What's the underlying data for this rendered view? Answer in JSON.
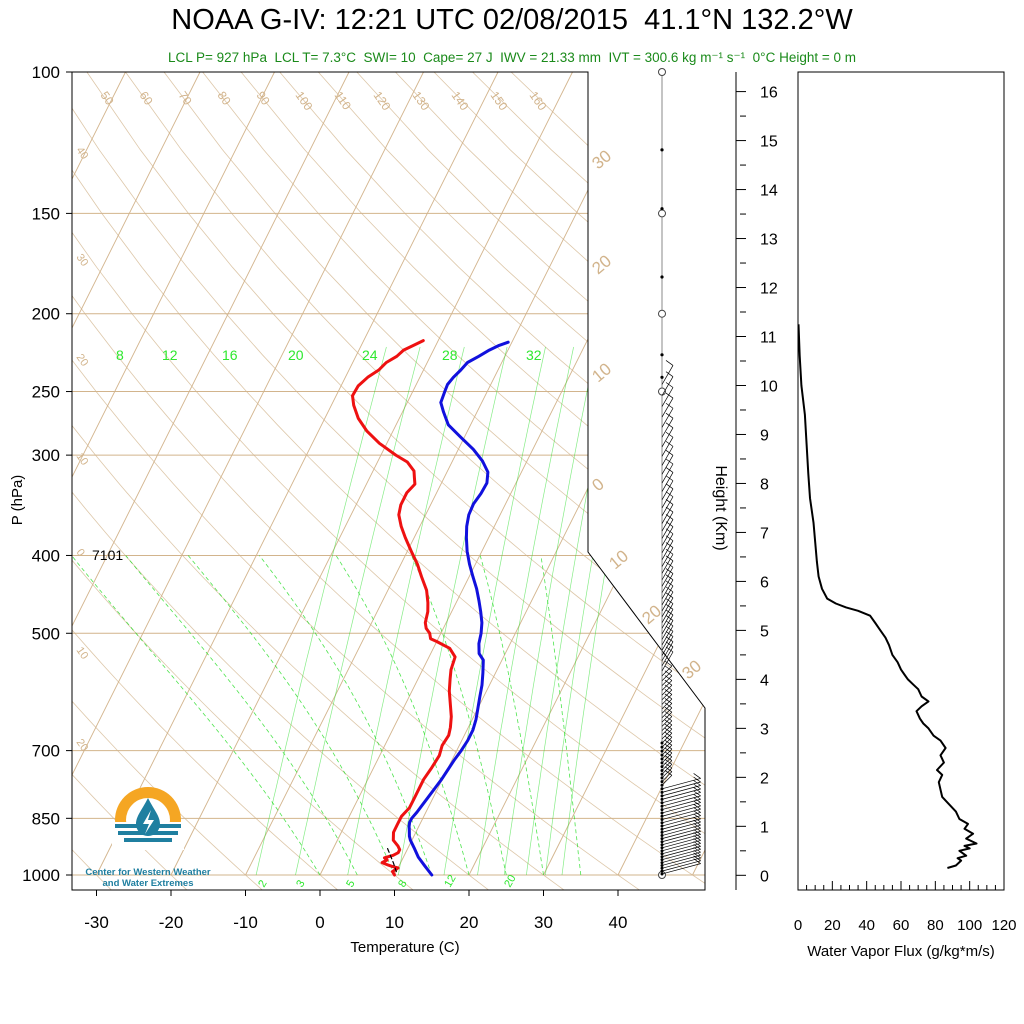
{
  "title": "NOAA G-IV: 12:21 UTC 02/08/2015  41.1°N 132.2°W",
  "subtitle": "LCL P= 927 hPa  LCL T= 7.3°C  SWI= 10  Cape= 27 J  IWV = 21.33 mm  IVT = 300.6 kg m⁻¹ s⁻¹  0°C Height = 0 m",
  "colors": {
    "temperature": "#ee1111",
    "dewpoint": "#1111dd",
    "isotherm_adiabat": "#d2b48c",
    "mixing_ratio": "#22dd22",
    "annotation_green": "#1a8a1a",
    "logo_orange": "#f5a623",
    "logo_blue": "#1f7fa0"
  },
  "station_label": "7101",
  "logo": {
    "icon": "water-drop-lightning-icon",
    "line1": "Center for Western Weather",
    "line2": "and Water Extremes"
  },
  "chart_data": [
    {
      "type": "line",
      "chart_kind": "skew-T log-P diagram",
      "xlabel": "Temperature (C)",
      "ylabel": "P (hPa)",
      "x_ticks": [
        -30,
        -20,
        -10,
        0,
        10,
        20,
        30,
        40
      ],
      "x_tick_labels": [
        "-30",
        "-20",
        "-10",
        "0",
        "10",
        "20",
        "30",
        "40"
      ],
      "y_ticks": [
        100,
        150,
        200,
        250,
        300,
        400,
        500,
        700,
        850,
        1000
      ],
      "y_tick_labels": [
        "100",
        "150",
        "200",
        "250",
        "300",
        "400",
        "500",
        "700",
        "850",
        "1000"
      ],
      "y_scale": "log",
      "xlim": [
        -33,
        52
      ],
      "ylim": [
        1020,
        100
      ],
      "isotherm_labels_top": [
        "50",
        "60",
        "70",
        "80",
        "90",
        "100",
        "110",
        "120",
        "130",
        "140",
        "150",
        "160"
      ],
      "isotherm_labels_left": [
        "40",
        "30",
        "20",
        "10",
        "0",
        "10",
        "20"
      ],
      "isotherm_labels_right": [
        "30",
        "20",
        "10",
        "0",
        "10",
        "20",
        "30"
      ],
      "mixing_ratio_labels_upper": [
        "8",
        "12",
        "16",
        "20",
        "24",
        "28",
        "32"
      ],
      "mixing_ratio_labels_lower": [
        "2",
        "3",
        "5",
        "8",
        "12",
        "20"
      ],
      "series": [
        {
          "name": "",
          "role": "temperature",
          "color": "#ee1111",
          "points": [
            [
              10,
              1000
            ],
            [
              9.5,
              990
            ],
            [
              10,
              980
            ],
            [
              9,
              975
            ],
            [
              8.5,
              972
            ],
            [
              7.5,
              965
            ],
            [
              8,
              958
            ],
            [
              7.5,
              952
            ],
            [
              8.5,
              945
            ],
            [
              9,
              938
            ],
            [
              9,
              930
            ],
            [
              8.5,
              920
            ],
            [
              7.5,
              905
            ],
            [
              7,
              885
            ],
            [
              7,
              865
            ],
            [
              7,
              845
            ],
            [
              7.5,
              825
            ],
            [
              7.5,
              805
            ],
            [
              7.5,
              785
            ],
            [
              7.5,
              760
            ],
            [
              7.8,
              735
            ],
            [
              8,
              710
            ],
            [
              7.7,
              690
            ],
            [
              7.9,
              670
            ],
            [
              7.6,
              655
            ],
            [
              7,
              635
            ],
            [
              6,
              612
            ],
            [
              5,
              590
            ],
            [
              4.3,
              570
            ],
            [
              3.8,
              555
            ],
            [
              3.5,
              535
            ],
            [
              2.2,
              522
            ],
            [
              0,
              512
            ],
            [
              -1,
              508
            ],
            [
              -1.5,
              500
            ],
            [
              -2.3,
              493
            ],
            [
              -2.8,
              485
            ],
            [
              -3.2,
              470
            ],
            [
              -3.8,
              458
            ],
            [
              -4.8,
              442
            ],
            [
              -6.4,
              425
            ],
            [
              -7.8,
              410
            ],
            [
              -9.5,
              395
            ],
            [
              -11.2,
              380
            ],
            [
              -12.5,
              368
            ],
            [
              -13.6,
              356
            ],
            [
              -14,
              346
            ],
            [
              -14,
              340
            ],
            [
              -14,
              334
            ],
            [
              -13.5,
              326
            ],
            [
              -14,
              320
            ],
            [
              -14.5,
              314
            ],
            [
              -16,
              306
            ],
            [
              -18,
              300
            ],
            [
              -21,
              290
            ],
            [
              -23.5,
              280
            ],
            [
              -25.5,
              270
            ],
            [
              -27,
              260
            ],
            [
              -27.8,
              253
            ],
            [
              -27.7,
              246
            ],
            [
              -27,
              240
            ],
            [
              -26,
              235
            ],
            [
              -25.5,
              230
            ],
            [
              -24.5,
              226
            ],
            [
              -24,
              222
            ],
            [
              -23,
              219
            ],
            [
              -22,
              216
            ]
          ]
        },
        {
          "name": "",
          "role": "dewpoint",
          "color": "#1111dd",
          "points": [
            [
              15,
              1000
            ],
            [
              13.5,
              975
            ],
            [
              12,
              950
            ],
            [
              10.8,
              925
            ],
            [
              9.8,
              905
            ],
            [
              9.4,
              895
            ],
            [
              9,
              880
            ],
            [
              8.7,
              870
            ],
            [
              8.5,
              860
            ],
            [
              8.5,
              850
            ],
            [
              8.8,
              835
            ],
            [
              9,
              820
            ],
            [
              9.3,
              800
            ],
            [
              9.6,
              780
            ],
            [
              9.9,
              760
            ],
            [
              10.1,
              740
            ],
            [
              10.3,
              720
            ],
            [
              10.6,
              700
            ],
            [
              10.8,
              680
            ],
            [
              10.8,
              660
            ],
            [
              10.5,
              640
            ],
            [
              10,
              620
            ],
            [
              9.5,
              600
            ],
            [
              9,
              580
            ],
            [
              8.3,
              560
            ],
            [
              7.5,
              540
            ],
            [
              6.5,
              530
            ],
            [
              5.8,
              515
            ],
            [
              5.4,
              500
            ],
            [
              4.8,
              485
            ],
            [
              3.9,
              470
            ],
            [
              2.9,
              455
            ],
            [
              1.8,
              440
            ],
            [
              0.5,
              425
            ],
            [
              -0.8,
              410
            ],
            [
              -2,
              395
            ],
            [
              -3,
              380
            ],
            [
              -3.7,
              368
            ],
            [
              -4.2,
              356
            ],
            [
              -4.3,
              345
            ],
            [
              -4,
              335
            ],
            [
              -3.9,
              325
            ],
            [
              -4.5,
              315
            ],
            [
              -6,
              305
            ],
            [
              -8,
              295
            ],
            [
              -10.5,
              285
            ],
            [
              -13,
              275
            ],
            [
              -14.5,
              265
            ],
            [
              -15.5,
              258
            ],
            [
              -15.7,
              250
            ],
            [
              -15.8,
              245
            ],
            [
              -15.5,
              240
            ],
            [
              -15,
              235
            ],
            [
              -14.6,
              230
            ],
            [
              -13.5,
              226
            ],
            [
              -12.5,
              222
            ],
            [
              -11.5,
              219
            ],
            [
              -10.5,
              217
            ]
          ]
        },
        {
          "name": "",
          "role": "parcel",
          "style": "dashed",
          "points": [
            [
              7.3,
              927
            ],
            [
              9,
              965
            ],
            [
              10,
              990
            ]
          ]
        }
      ]
    },
    {
      "type": "line",
      "xlabel": "Water Vapor Flux (g/kg*m/s)",
      "ylabel": "Height (Km)",
      "x_ticks": [
        0,
        20,
        40,
        60,
        80,
        100,
        120
      ],
      "x_tick_labels": [
        "0",
        "20",
        "40",
        "60",
        "80",
        "100",
        "120"
      ],
      "y_ticks": [
        0,
        1,
        2,
        3,
        4,
        5,
        6,
        7,
        8,
        9,
        10,
        11,
        12,
        13,
        14,
        15,
        16
      ],
      "y_tick_labels": [
        "0",
        "1",
        "2",
        "3",
        "4",
        "5",
        "6",
        "7",
        "8",
        "9",
        "10",
        "11",
        "12",
        "13",
        "14",
        "15",
        "16"
      ],
      "xlim": [
        0,
        120
      ],
      "ylim": [
        -0.3,
        16.4
      ],
      "series": [
        {
          "name": "",
          "color": "#000000",
          "points": [
            [
              87,
              0.15
            ],
            [
              92,
              0.2
            ],
            [
              95,
              0.3
            ],
            [
              93,
              0.35
            ],
            [
              98,
              0.4
            ],
            [
              94,
              0.5
            ],
            [
              100,
              0.55
            ],
            [
              97,
              0.6
            ],
            [
              104,
              0.65
            ],
            [
              98,
              0.75
            ],
            [
              102,
              0.85
            ],
            [
              97,
              0.95
            ],
            [
              99,
              1.05
            ],
            [
              94,
              1.15
            ],
            [
              92,
              1.3
            ],
            [
              88,
              1.45
            ],
            [
              84,
              1.6
            ],
            [
              83,
              1.75
            ],
            [
              82,
              1.9
            ],
            [
              84,
              2.05
            ],
            [
              81,
              2.15
            ],
            [
              85,
              2.3
            ],
            [
              83,
              2.45
            ],
            [
              86,
              2.6
            ],
            [
              83,
              2.75
            ],
            [
              79,
              2.85
            ],
            [
              76,
              3.0
            ],
            [
              73,
              3.1
            ],
            [
              71,
              3.2
            ],
            [
              69,
              3.35
            ],
            [
              72,
              3.45
            ],
            [
              76,
              3.55
            ],
            [
              72,
              3.65
            ],
            [
              70,
              3.8
            ],
            [
              67,
              3.9
            ],
            [
              64,
              4.0
            ],
            [
              62,
              4.1
            ],
            [
              60,
              4.2
            ],
            [
              58,
              4.35
            ],
            [
              55,
              4.5
            ],
            [
              53,
              4.7
            ],
            [
              51,
              4.85
            ],
            [
              48,
              5.0
            ],
            [
              45,
              5.15
            ],
            [
              42,
              5.3
            ],
            [
              35,
              5.4
            ],
            [
              28,
              5.47
            ],
            [
              22,
              5.55
            ],
            [
              17,
              5.65
            ],
            [
              14,
              5.85
            ],
            [
              12,
              6.1
            ],
            [
              11,
              6.4
            ],
            [
              10,
              6.8
            ],
            [
              9,
              7.2
            ],
            [
              7,
              7.7
            ],
            [
              6,
              8.2
            ],
            [
              5,
              8.8
            ],
            [
              4,
              9.4
            ],
            [
              2,
              10.0
            ],
            [
              1,
              10.6
            ],
            [
              0.3,
              11.25
            ]
          ]
        }
      ]
    }
  ]
}
